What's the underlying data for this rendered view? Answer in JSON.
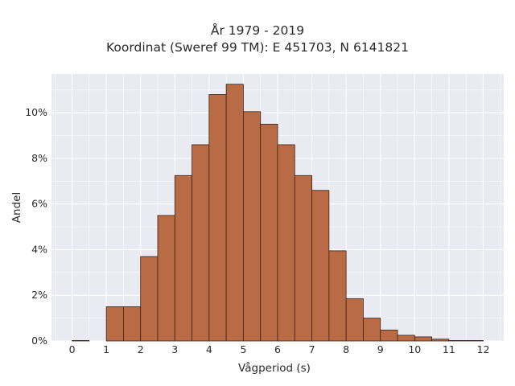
{
  "chart_data": {
    "type": "bar",
    "title": "År 1979 - 2019",
    "subtitle": "Koordinat (Sweref 99 TM): E 451703, N 6141821",
    "xlabel": "Vågperiod (s)",
    "ylabel": "Andel",
    "x_ticks": [
      0,
      1,
      2,
      3,
      4,
      5,
      6,
      7,
      8,
      9,
      10,
      11,
      12
    ],
    "x_tick_labels": [
      "0",
      "1",
      "2",
      "3",
      "4",
      "5",
      "6",
      "7",
      "8",
      "9",
      "10",
      "11",
      "12"
    ],
    "y_ticks": [
      0,
      2,
      4,
      6,
      8,
      10
    ],
    "y_tick_labels": [
      "0%",
      "2%",
      "4%",
      "6%",
      "8%",
      "10%"
    ],
    "xlim": [
      -0.6,
      12.6
    ],
    "ylim": [
      0,
      11.7
    ],
    "bin_width": 0.5,
    "bins": [
      {
        "start": 0.0,
        "end": 0.5,
        "value": 0.02
      },
      {
        "start": 0.5,
        "end": 1.0,
        "value": 0.0
      },
      {
        "start": 1.0,
        "end": 1.5,
        "value": 1.5
      },
      {
        "start": 1.5,
        "end": 2.0,
        "value": 1.5
      },
      {
        "start": 2.0,
        "end": 2.5,
        "value": 3.7
      },
      {
        "start": 2.5,
        "end": 3.0,
        "value": 5.5
      },
      {
        "start": 3.0,
        "end": 3.5,
        "value": 7.25
      },
      {
        "start": 3.5,
        "end": 4.0,
        "value": 8.6
      },
      {
        "start": 4.0,
        "end": 4.5,
        "value": 10.8
      },
      {
        "start": 4.5,
        "end": 5.0,
        "value": 11.25
      },
      {
        "start": 5.0,
        "end": 5.5,
        "value": 10.05
      },
      {
        "start": 5.5,
        "end": 6.0,
        "value": 9.5
      },
      {
        "start": 6.0,
        "end": 6.5,
        "value": 8.6
      },
      {
        "start": 6.5,
        "end": 7.0,
        "value": 7.25
      },
      {
        "start": 7.0,
        "end": 7.5,
        "value": 6.6
      },
      {
        "start": 7.5,
        "end": 8.0,
        "value": 3.95
      },
      {
        "start": 8.0,
        "end": 8.5,
        "value": 1.85
      },
      {
        "start": 8.5,
        "end": 9.0,
        "value": 1.0
      },
      {
        "start": 9.0,
        "end": 9.5,
        "value": 0.48
      },
      {
        "start": 9.5,
        "end": 10.0,
        "value": 0.25
      },
      {
        "start": 10.0,
        "end": 10.5,
        "value": 0.18
      },
      {
        "start": 10.5,
        "end": 11.0,
        "value": 0.08
      },
      {
        "start": 11.0,
        "end": 11.5,
        "value": 0.02
      },
      {
        "start": 11.5,
        "end": 12.0,
        "value": 0.02
      }
    ],
    "grid": true,
    "legend": "none",
    "colors": {
      "bar_fill": "#b86b44",
      "bar_edge": "#3a2418",
      "plot_background": "#eaeaf2",
      "grid": "#ffffff"
    }
  }
}
